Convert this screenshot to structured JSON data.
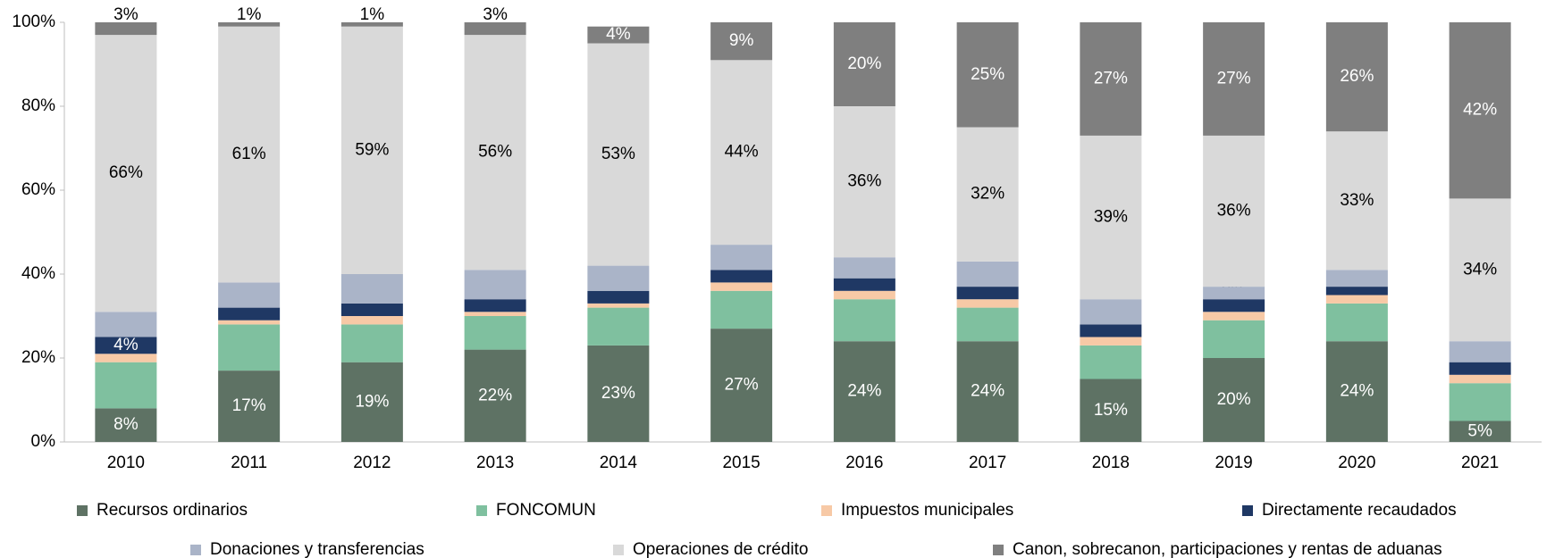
{
  "chart_data": {
    "type": "stacked_bar",
    "categories": [
      "2010",
      "2011",
      "2012",
      "2013",
      "2014",
      "2015",
      "2016",
      "2017",
      "2018",
      "2019",
      "2020",
      "2021"
    ],
    "series": [
      {
        "name": "Recursos ordinarios",
        "color": "#5e7264",
        "values": [
          8,
          17,
          19,
          22,
          23,
          27,
          24,
          24,
          15,
          20,
          24,
          5
        ],
        "value_labels": [
          "8%",
          "17%",
          "19%",
          "22%",
          "23%",
          "27%",
          "24%",
          "24%",
          "15%",
          "20%",
          "24%",
          "5%"
        ]
      },
      {
        "name": "FONCOMUN",
        "color": "#7fc09f",
        "values": [
          11,
          11,
          9,
          8,
          9,
          9,
          10,
          8,
          8,
          9,
          9,
          9
        ]
      },
      {
        "name": "Impuestos municipales",
        "color": "#f7c9a6",
        "values": [
          2,
          1,
          2,
          1,
          1,
          2,
          2,
          2,
          2,
          2,
          2,
          2
        ]
      },
      {
        "name": "Directamente recaudados",
        "color": "#1f3864",
        "values": [
          4,
          3,
          3,
          3,
          3,
          3,
          3,
          3,
          3,
          3,
          2,
          3
        ],
        "value_labels": [
          "4%",
          "3%",
          "3%",
          "3%",
          "3%",
          "3%",
          "3%",
          "3%",
          "3%",
          "3%",
          "2%",
          "3%"
        ]
      },
      {
        "name": "Donaciones y transferencias",
        "color": "#aab4c8",
        "values": [
          6,
          6,
          7,
          7,
          6,
          6,
          5,
          6,
          6,
          3,
          4,
          5
        ]
      },
      {
        "name": "Operaciones de crédito",
        "color": "#d9d9d9",
        "values": [
          66,
          61,
          59,
          56,
          53,
          44,
          36,
          32,
          39,
          36,
          33,
          34
        ],
        "value_labels": [
          "66%",
          "61%",
          "59%",
          "56%",
          "53%",
          "44%",
          "36%",
          "32%",
          "39%",
          "36%",
          "33%",
          "34%"
        ]
      },
      {
        "name": "Canon, sobrecanon, participaciones y rentas de aduanas",
        "color": "#7f7f7f",
        "values": [
          3,
          1,
          1,
          3,
          4,
          9,
          20,
          25,
          27,
          27,
          26,
          42
        ],
        "value_labels": [
          "3%",
          "1%",
          "1%",
          "3%",
          "4%",
          "9%",
          "20%",
          "25%",
          "27%",
          "27%",
          "26%",
          "42%"
        ]
      }
    ],
    "ylim": [
      0,
      100
    ],
    "yticks": [
      {
        "value": 0,
        "label": "0%"
      },
      {
        "value": 20,
        "label": "20%"
      },
      {
        "value": 40,
        "label": "40%"
      },
      {
        "value": 60,
        "label": "60%"
      },
      {
        "value": 80,
        "label": "80%"
      },
      {
        "value": 100,
        "label": "100%"
      }
    ],
    "legend": "bottom"
  }
}
